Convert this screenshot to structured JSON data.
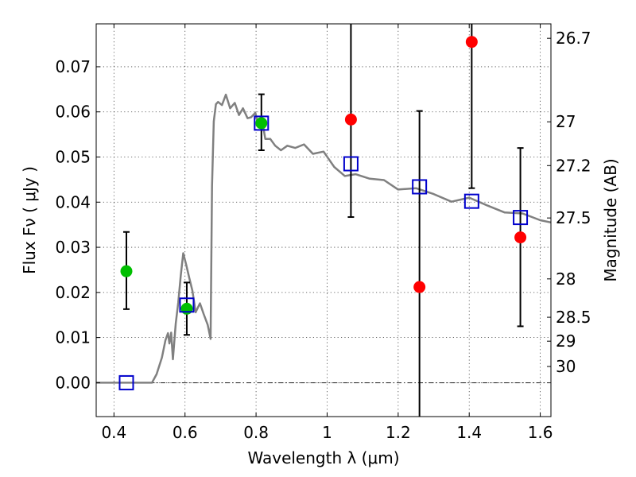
{
  "chart_data": {
    "type": "scatter",
    "title": "",
    "xlabel": "Wavelength  λ (μm)",
    "ylabel": "Flux  Fν  ( μJy )",
    "y2label": "Magnitude (AB)",
    "xlim": [
      0.35,
      1.63
    ],
    "ylim": [
      -0.0075,
      0.0795
    ],
    "grid": true,
    "xticks": [
      0.4,
      0.6,
      0.8,
      1.0,
      1.2,
      1.4,
      1.6
    ],
    "xtick_labels": [
      "0.4",
      "0.6",
      "0.8",
      "1",
      "1.2",
      "1.4",
      "1.6"
    ],
    "yticks": [
      0.0,
      0.01,
      0.02,
      0.03,
      0.04,
      0.05,
      0.06,
      0.07
    ],
    "ytick_labels": [
      "0.00",
      "0.01",
      "0.02",
      "0.03",
      "0.04",
      "0.05",
      "0.06",
      "0.07"
    ],
    "y2ticks": [
      {
        "label": "26.7",
        "flux": 0.0763
      },
      {
        "label": "27",
        "flux": 0.0578
      },
      {
        "label": "27.2",
        "flux": 0.0481
      },
      {
        "label": "27.5",
        "flux": 0.0365
      },
      {
        "label": "28",
        "flux": 0.023
      },
      {
        "label": "28.5",
        "flux": 0.0145
      },
      {
        "label": "29",
        "flux": 0.0092
      },
      {
        "label": "30",
        "flux": 0.0036
      }
    ],
    "series": [
      {
        "name": "model SED",
        "style": "line",
        "color": "#808080",
        "x": [
          0.35,
          0.507,
          0.52,
          0.535,
          0.545,
          0.552,
          0.556,
          0.561,
          0.566,
          0.574,
          0.581,
          0.588,
          0.595,
          0.603,
          0.612,
          0.621,
          0.63,
          0.642,
          0.652,
          0.664,
          0.672,
          0.676,
          0.681,
          0.687,
          0.693,
          0.704,
          0.715,
          0.727,
          0.74,
          0.752,
          0.763,
          0.776,
          0.786,
          0.798,
          0.806,
          0.817,
          0.826,
          0.84,
          0.854,
          0.87,
          0.888,
          0.91,
          0.935,
          0.96,
          0.99,
          1.02,
          1.05,
          1.08,
          1.12,
          1.16,
          1.2,
          1.25,
          1.3,
          1.35,
          1.4,
          1.45,
          1.5,
          1.55,
          1.6,
          1.63
        ],
        "y": [
          0.0,
          0.0,
          0.0019,
          0.0056,
          0.0094,
          0.011,
          0.0087,
          0.0111,
          0.0052,
          0.0132,
          0.0177,
          0.0238,
          0.0287,
          0.0262,
          0.0232,
          0.0203,
          0.0156,
          0.0176,
          0.0153,
          0.0128,
          0.0097,
          0.0436,
          0.0579,
          0.0617,
          0.0622,
          0.0615,
          0.0638,
          0.0608,
          0.062,
          0.0593,
          0.0608,
          0.0586,
          0.0588,
          0.0598,
          0.0572,
          0.0582,
          0.054,
          0.054,
          0.0525,
          0.0515,
          0.0525,
          0.052,
          0.0528,
          0.0507,
          0.0512,
          0.0478,
          0.0458,
          0.0462,
          0.0452,
          0.0449,
          0.0428,
          0.0431,
          0.0418,
          0.0401,
          0.041,
          0.0393,
          0.0377,
          0.0375,
          0.036,
          0.0355
        ]
      },
      {
        "name": "green points",
        "style": "marker-circle",
        "color": "#00bf00",
        "x": [
          0.435,
          0.605,
          0.815
        ],
        "y": [
          0.0247,
          0.0164,
          0.0575
        ],
        "yerr_low": [
          0.0163,
          0.0106,
          0.0515
        ],
        "yerr_high": [
          0.0334,
          0.0222,
          0.0639
        ]
      },
      {
        "name": "red points",
        "style": "marker-circle",
        "color": "#ff0000",
        "x": [
          1.067,
          1.26,
          1.407,
          1.544
        ],
        "y": [
          0.0583,
          0.0212,
          0.0755,
          0.0322
        ],
        "yerr_low": [
          0.0367,
          -0.0075,
          0.0431,
          0.0125
        ],
        "yerr_high": [
          0.0795,
          0.0602,
          0.0795,
          0.052
        ]
      },
      {
        "name": "blue squares (model photometry)",
        "style": "marker-square",
        "color": "#0000cc",
        "x": [
          0.435,
          0.605,
          0.815,
          1.067,
          1.26,
          1.407,
          1.544
        ],
        "y": [
          0.0,
          0.0172,
          0.0575,
          0.0485,
          0.0434,
          0.0402,
          0.0366
        ]
      }
    ]
  }
}
